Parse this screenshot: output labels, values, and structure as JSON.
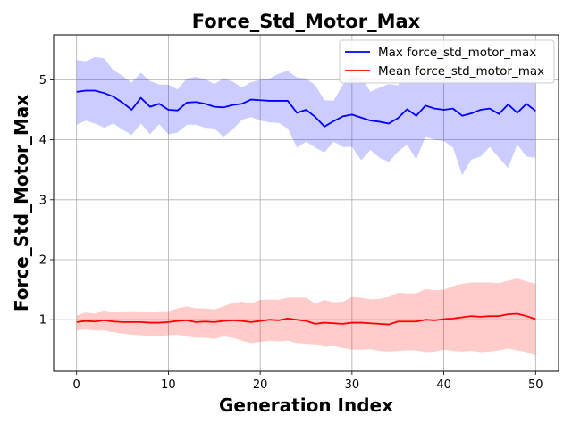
{
  "chart_data": {
    "type": "line",
    "title": "Force_Std_Motor_Max",
    "xlabel": "Generation Index",
    "ylabel": "Force_Std_Motor_Max",
    "xlim": [
      -2.5,
      52.5
    ],
    "ylim": [
      0.14,
      5.75
    ],
    "xticks": [
      0,
      10,
      20,
      30,
      40,
      50
    ],
    "yticks": [
      1,
      2,
      3,
      4,
      5
    ],
    "grid": true,
    "legend_position": "top-right",
    "x": [
      0,
      1,
      2,
      3,
      4,
      5,
      6,
      7,
      8,
      9,
      10,
      11,
      12,
      13,
      14,
      15,
      16,
      17,
      18,
      19,
      20,
      21,
      22,
      23,
      24,
      25,
      26,
      27,
      28,
      29,
      30,
      31,
      32,
      33,
      34,
      35,
      36,
      37,
      38,
      39,
      40,
      41,
      42,
      43,
      44,
      45,
      46,
      47,
      48,
      49,
      50
    ],
    "series": [
      {
        "name": "Max force_std_motor_max",
        "color": "#0000ff",
        "band_color": "#0000ff",
        "values": [
          4.8,
          4.82,
          4.82,
          4.78,
          4.72,
          4.62,
          4.5,
          4.7,
          4.55,
          4.6,
          4.5,
          4.49,
          4.62,
          4.63,
          4.6,
          4.55,
          4.54,
          4.58,
          4.6,
          4.67,
          4.66,
          4.65,
          4.65,
          4.65,
          4.45,
          4.5,
          4.38,
          4.22,
          4.31,
          4.39,
          4.42,
          4.37,
          4.32,
          4.3,
          4.27,
          4.36,
          4.51,
          4.4,
          4.57,
          4.52,
          4.5,
          4.52,
          4.4,
          4.44,
          4.5,
          4.52,
          4.43,
          4.59,
          4.45,
          4.6,
          4.48
        ],
        "upper": [
          5.33,
          5.31,
          5.38,
          5.36,
          5.16,
          5.07,
          4.95,
          5.12,
          4.98,
          4.92,
          4.92,
          4.84,
          5.02,
          5.05,
          5.01,
          4.93,
          5.02,
          4.97,
          4.87,
          4.96,
          5.0,
          5.02,
          5.1,
          5.15,
          5.04,
          5.02,
          4.91,
          4.66,
          4.65,
          4.92,
          5.08,
          5.05,
          4.8,
          4.87,
          4.93,
          4.91,
          5.11,
          5.01,
          5.08,
          5.02,
          5.07,
          5.07,
          4.99,
          5.01,
          5.1,
          5.09,
          5.06,
          5.06,
          4.97,
          5.07,
          4.95
        ],
        "lower": [
          4.25,
          4.32,
          4.27,
          4.2,
          4.27,
          4.17,
          4.08,
          4.27,
          4.09,
          4.26,
          4.09,
          4.12,
          4.25,
          4.25,
          4.2,
          4.19,
          4.05,
          4.17,
          4.33,
          4.38,
          4.32,
          4.29,
          4.28,
          4.19,
          3.87,
          3.97,
          3.87,
          3.79,
          3.97,
          3.88,
          3.88,
          3.66,
          3.83,
          3.7,
          3.63,
          3.8,
          3.92,
          3.67,
          4.05,
          4.0,
          3.98,
          3.87,
          3.41,
          3.67,
          3.72,
          3.88,
          3.7,
          3.53,
          3.92,
          3.72,
          3.7
        ]
      },
      {
        "name": "Mean force_std_motor_max",
        "color": "#ff0000",
        "band_color": "#ff0000",
        "values": [
          0.96,
          0.98,
          0.97,
          0.99,
          0.97,
          0.96,
          0.96,
          0.96,
          0.95,
          0.95,
          0.96,
          0.98,
          0.99,
          0.96,
          0.97,
          0.96,
          0.98,
          0.99,
          0.98,
          0.96,
          0.98,
          1.0,
          0.99,
          1.02,
          1.0,
          0.98,
          0.93,
          0.95,
          0.94,
          0.93,
          0.95,
          0.95,
          0.94,
          0.93,
          0.92,
          0.97,
          0.97,
          0.97,
          1.0,
          0.99,
          1.01,
          1.02,
          1.04,
          1.06,
          1.05,
          1.06,
          1.06,
          1.09,
          1.1,
          1.06,
          1.01
        ],
        "upper": [
          1.07,
          1.12,
          1.1,
          1.16,
          1.12,
          1.14,
          1.14,
          1.14,
          1.13,
          1.14,
          1.14,
          1.19,
          1.22,
          1.19,
          1.19,
          1.17,
          1.22,
          1.28,
          1.3,
          1.27,
          1.33,
          1.34,
          1.33,
          1.37,
          1.37,
          1.37,
          1.27,
          1.33,
          1.29,
          1.3,
          1.38,
          1.37,
          1.34,
          1.35,
          1.38,
          1.45,
          1.44,
          1.44,
          1.51,
          1.49,
          1.5,
          1.56,
          1.6,
          1.62,
          1.62,
          1.62,
          1.61,
          1.65,
          1.69,
          1.64,
          1.6
        ],
        "lower": [
          0.82,
          0.84,
          0.82,
          0.82,
          0.79,
          0.77,
          0.75,
          0.74,
          0.73,
          0.73,
          0.74,
          0.75,
          0.72,
          0.7,
          0.7,
          0.68,
          0.72,
          0.7,
          0.65,
          0.61,
          0.63,
          0.65,
          0.64,
          0.65,
          0.61,
          0.6,
          0.59,
          0.55,
          0.56,
          0.53,
          0.5,
          0.5,
          0.51,
          0.48,
          0.47,
          0.48,
          0.49,
          0.49,
          0.46,
          0.47,
          0.5,
          0.48,
          0.47,
          0.48,
          0.46,
          0.47,
          0.49,
          0.52,
          0.49,
          0.46,
          0.4
        ]
      }
    ]
  }
}
